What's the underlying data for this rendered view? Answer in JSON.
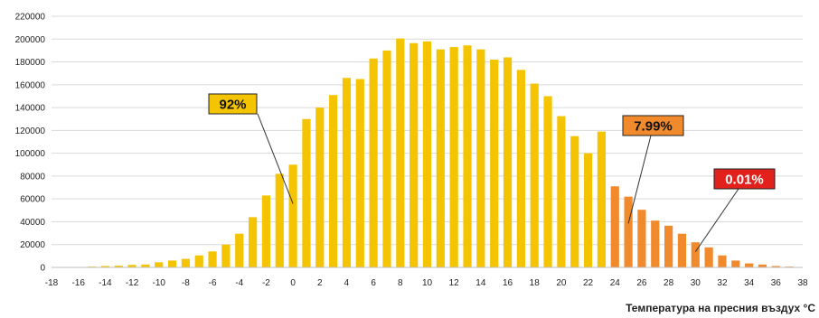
{
  "chart_data": {
    "type": "bar",
    "title": "",
    "xlabel": "Температура на пресния въздух °C",
    "ylabel": "",
    "ylim": [
      0,
      220000
    ],
    "yticks": [
      0,
      20000,
      40000,
      60000,
      80000,
      100000,
      120000,
      140000,
      160000,
      180000,
      200000,
      220000
    ],
    "xlim": [
      -18,
      38
    ],
    "xticks": [
      -18,
      -16,
      -14,
      -12,
      -10,
      -8,
      -6,
      -4,
      -2,
      0,
      2,
      4,
      6,
      8,
      10,
      12,
      14,
      16,
      18,
      20,
      22,
      24,
      26,
      28,
      30,
      32,
      34,
      36,
      38
    ],
    "grid": "horizontal",
    "x": [
      -17,
      -16,
      -15,
      -14,
      -13,
      -12,
      -11,
      -10,
      -9,
      -8,
      -7,
      -6,
      -5,
      -4,
      -3,
      -2,
      -1,
      0,
      1,
      2,
      3,
      4,
      5,
      6,
      7,
      8,
      9,
      10,
      11,
      12,
      13,
      14,
      15,
      16,
      17,
      18,
      19,
      20,
      21,
      22,
      23,
      24,
      25,
      26,
      27,
      28,
      29,
      30,
      31,
      32,
      33,
      34,
      35,
      36,
      37
    ],
    "values": [
      200,
      400,
      700,
      1200,
      1500,
      2200,
      2500,
      4500,
      6000,
      7500,
      10500,
      14000,
      20000,
      29500,
      44000,
      63000,
      82000,
      90000,
      130000,
      140000,
      151000,
      166000,
      165000,
      183000,
      190000,
      200500,
      196500,
      198000,
      191000,
      193000,
      194500,
      191000,
      182000,
      184000,
      173000,
      161000,
      150000,
      132500,
      115000,
      100000,
      119000,
      71000,
      62000,
      50500,
      41000,
      36500,
      29500,
      22000,
      17500,
      10500,
      6000,
      3500,
      2500,
      1200,
      700
    ],
    "bar_colors": {
      "yellow": "#F5C400",
      "orange": "#F08A2C"
    },
    "orange_from_x": 24,
    "annotations": [
      {
        "text": "92%",
        "bg": "#F5C400",
        "fg": "#111111",
        "target_x": 0
      },
      {
        "text": "7.99%",
        "bg": "#F08A2C",
        "fg": "#111111",
        "target_x": 25
      },
      {
        "text": "0.01%",
        "bg": "#E2211C",
        "fg": "#ffffff",
        "target_x": 30
      }
    ]
  }
}
